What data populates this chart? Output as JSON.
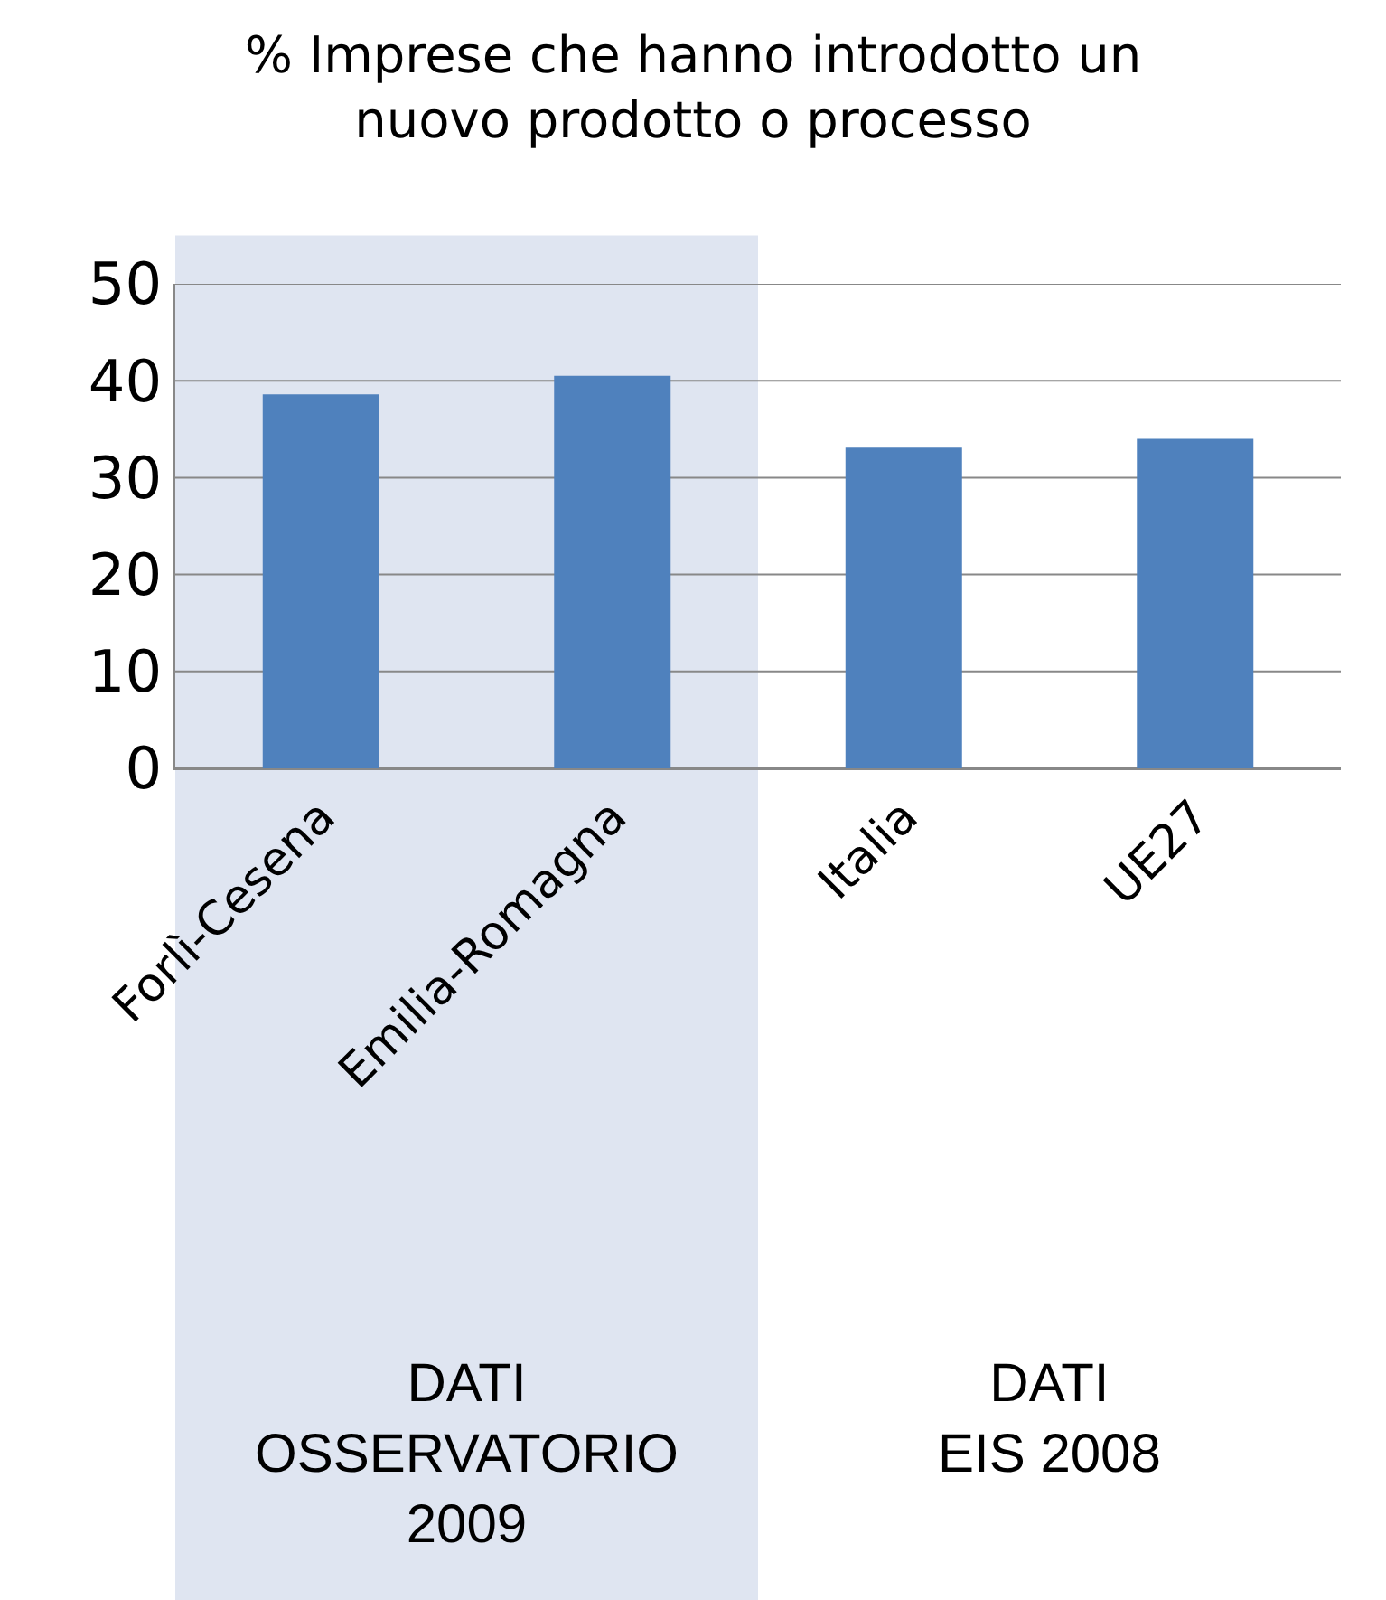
{
  "chart_data": {
    "type": "bar",
    "title": "% Imprese che hanno introdotto un\nnuovo prodotto o processo",
    "categories": [
      "Forlì-Cesena",
      "Emilia-Romagna",
      "Italia",
      "UE27"
    ],
    "values": [
      38.6,
      40.5,
      33.1,
      34.0
    ],
    "color": "#4f81bd",
    "ylim": [
      0,
      50
    ],
    "yticks": [
      0,
      10,
      20,
      30,
      40,
      50
    ],
    "grid": "y",
    "bands": [
      {
        "axis": "x",
        "from": "Forlì-Cesena",
        "to": "Emilia-Romagna",
        "color": "#dfe5f1"
      }
    ],
    "annotations": [
      "DATI\nOSSERVATORIO\n2009",
      "DATI\nEIS 2008"
    ]
  }
}
